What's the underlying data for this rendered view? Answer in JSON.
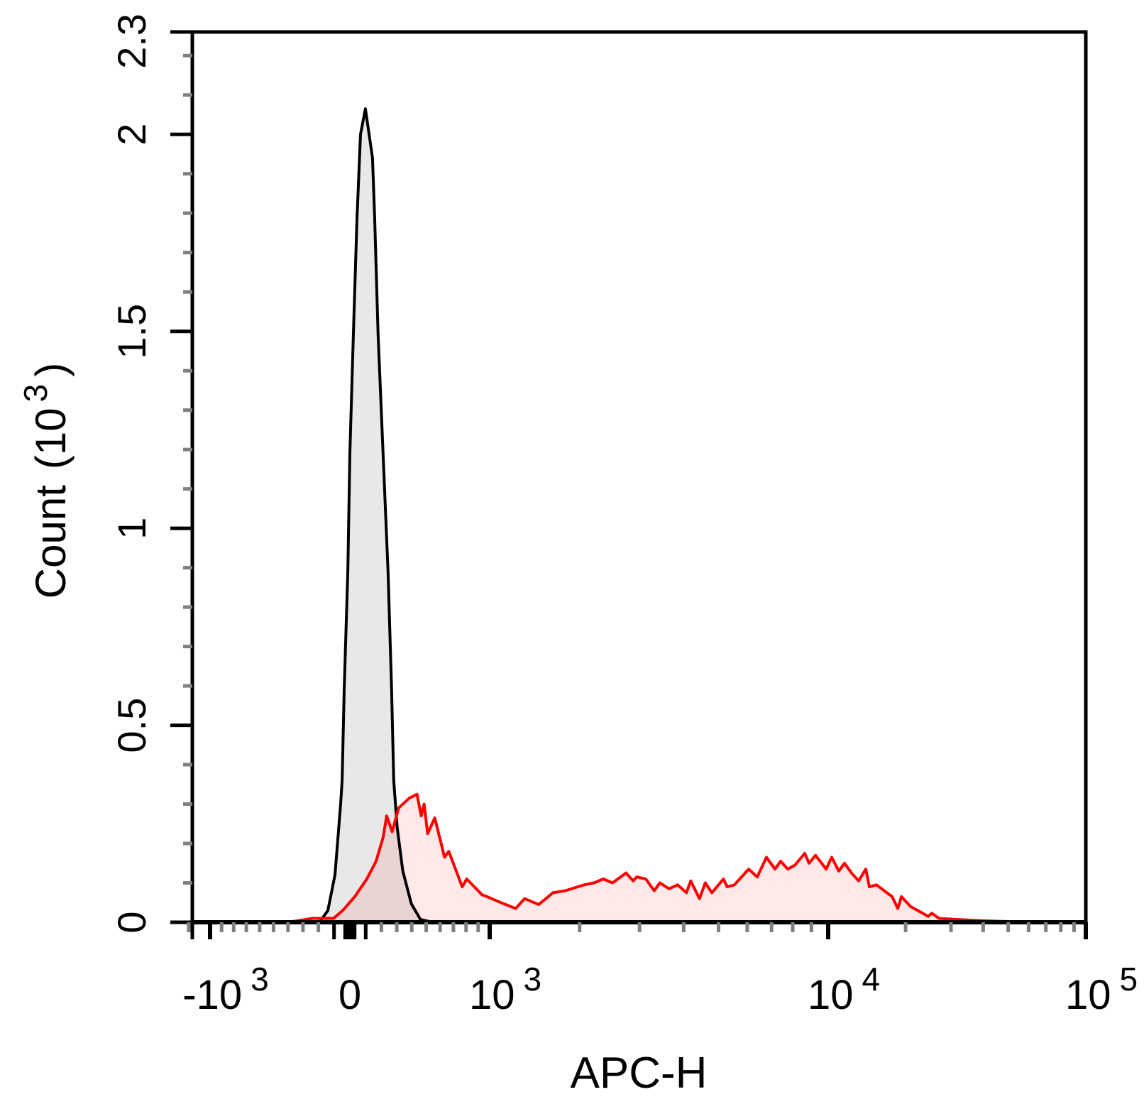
{
  "chart_data": {
    "type": "area",
    "title": "",
    "xlabel": "APC-H",
    "ylabel": {
      "text": "Count",
      "unit_prefix": "(10",
      "unit_exp": "3",
      "unit_suffix": ")"
    },
    "x_scale": "biexponential",
    "xlim": [
      -1300,
      100000
    ],
    "ylim": [
      0,
      2.26
    ],
    "grid": false,
    "legend": "none",
    "x_ticks": [
      {
        "value": -1000,
        "label": "-10",
        "sup": "3"
      },
      {
        "value": 0,
        "label": "0",
        "sup": ""
      },
      {
        "value": 1000,
        "label": "10",
        "sup": "3"
      },
      {
        "value": 10000,
        "label": "10",
        "sup": "4"
      },
      {
        "value": 100000,
        "label": "10",
        "sup": "5"
      }
    ],
    "y_ticks": [
      {
        "value": 0,
        "label": "0"
      },
      {
        "value": 0.5,
        "label": "0.5"
      },
      {
        "value": 1,
        "label": "1"
      },
      {
        "value": 1.5,
        "label": "1.5"
      },
      {
        "value": 2,
        "label": "2"
      },
      {
        "value": 2.26,
        "label": "2.3"
      }
    ],
    "series": [
      {
        "color": "#000000",
        "fill": "#e8e8e8",
        "points": [
          [
            -400,
            0
          ],
          [
            -193,
            0
          ],
          [
            -139,
            0.03
          ],
          [
            -94,
            0.12
          ],
          [
            -58,
            0.3
          ],
          [
            -49,
            0.36
          ],
          [
            -36,
            0.59
          ],
          [
            -13,
            0.89
          ],
          [
            0,
            1.19
          ],
          [
            22,
            1.49
          ],
          [
            45,
            1.79
          ],
          [
            67,
            2.0
          ],
          [
            98,
            2.065
          ],
          [
            143,
            1.94
          ],
          [
            157,
            1.79
          ],
          [
            179,
            1.49
          ],
          [
            211,
            1.19
          ],
          [
            243,
            0.89
          ],
          [
            266,
            0.59
          ],
          [
            280,
            0.36
          ],
          [
            303,
            0.24
          ],
          [
            340,
            0.13
          ],
          [
            397,
            0.047
          ],
          [
            460,
            0.007
          ],
          [
            545,
            0
          ]
        ]
      },
      {
        "color": "#ff0000",
        "fill": "#ffe8e8",
        "points": [
          [
            -400,
            0
          ],
          [
            -238,
            0.01
          ],
          [
            -103,
            0.01
          ],
          [
            -45,
            0.03
          ],
          [
            31,
            0.065
          ],
          [
            107,
            0.11
          ],
          [
            166,
            0.155
          ],
          [
            211,
            0.215
          ],
          [
            234,
            0.27
          ],
          [
            270,
            0.23
          ],
          [
            312,
            0.29
          ],
          [
            383,
            0.315
          ],
          [
            436,
            0.325
          ],
          [
            465,
            0.27
          ],
          [
            485,
            0.3
          ],
          [
            510,
            0.225
          ],
          [
            561,
            0.265
          ],
          [
            633,
            0.165
          ],
          [
            665,
            0.18
          ],
          [
            769,
            0.09
          ],
          [
            805,
            0.11
          ],
          [
            933,
            0.07
          ],
          [
            977,
            0.065
          ],
          [
            1102,
            0.05
          ],
          [
            1244,
            0.035
          ],
          [
            1335,
            0.06
          ],
          [
            1488,
            0.045
          ],
          [
            1654,
            0.075
          ],
          [
            1805,
            0.08
          ],
          [
            2063,
            0.095
          ],
          [
            2210,
            0.1
          ],
          [
            2355,
            0.11
          ],
          [
            2506,
            0.1
          ],
          [
            2743,
            0.125
          ],
          [
            2876,
            0.105
          ],
          [
            2945,
            0.115
          ],
          [
            3126,
            0.11
          ],
          [
            3303,
            0.08
          ],
          [
            3426,
            0.1
          ],
          [
            3639,
            0.085
          ],
          [
            3848,
            0.095
          ],
          [
            4070,
            0.075
          ],
          [
            4185,
            0.105
          ],
          [
            4426,
            0.06
          ],
          [
            4595,
            0.1
          ],
          [
            4793,
            0.075
          ],
          [
            5162,
            0.11
          ],
          [
            5283,
            0.09
          ],
          [
            5531,
            0.095
          ],
          [
            6054,
            0.135
          ],
          [
            6392,
            0.115
          ],
          [
            6776,
            0.165
          ],
          [
            7151,
            0.135
          ],
          [
            7412,
            0.155
          ],
          [
            7754,
            0.135
          ],
          [
            8110,
            0.145
          ],
          [
            8631,
            0.175
          ],
          [
            8866,
            0.15
          ],
          [
            9232,
            0.17
          ],
          [
            9874,
            0.135
          ],
          [
            10320,
            0.165
          ],
          [
            10995,
            0.13
          ],
          [
            11570,
            0.15
          ],
          [
            12330,
            0.125
          ],
          [
            13140,
            0.105
          ],
          [
            14010,
            0.135
          ],
          [
            14460,
            0.09
          ],
          [
            15400,
            0.095
          ],
          [
            17730,
            0.065
          ],
          [
            18650,
            0.035
          ],
          [
            19250,
            0.065
          ],
          [
            20900,
            0.04
          ],
          [
            22990,
            0.025
          ],
          [
            24490,
            0.015
          ],
          [
            25280,
            0.023
          ],
          [
            26930,
            0.01
          ],
          [
            31950,
            0.007
          ],
          [
            39390,
            0.004
          ],
          [
            60260,
            0
          ]
        ]
      }
    ]
  }
}
